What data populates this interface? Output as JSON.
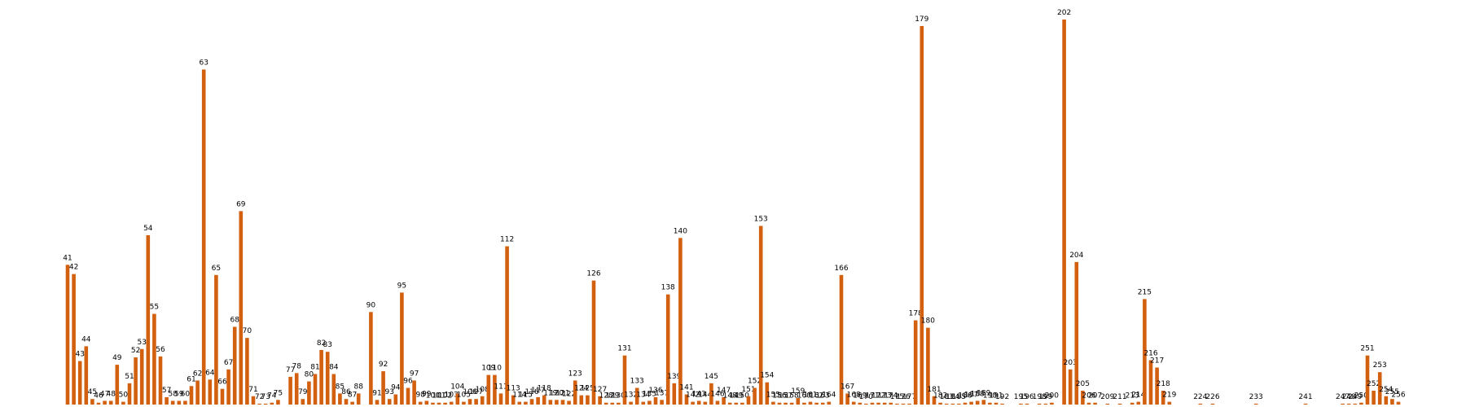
{
  "chart_data": {
    "type": "bar",
    "color": "#d2600f",
    "categories": [
      "41",
      "42",
      "43",
      "44",
      "45",
      "46",
      "47",
      "48",
      "49",
      "50",
      "51",
      "52",
      "53",
      "54",
      "55",
      "56",
      "57",
      "58",
      "59",
      "60",
      "61",
      "62",
      "63",
      "64",
      "65",
      "66",
      "67",
      "68",
      "69",
      "70",
      "71",
      "72",
      "73",
      "74",
      "75",
      null,
      "77",
      "78",
      "79",
      "80",
      "81",
      "82",
      "83",
      "84",
      "85",
      "86",
      "87",
      "88",
      null,
      "90",
      "91",
      "92",
      "93",
      "94",
      "95",
      "96",
      "97",
      "98",
      "99",
      "100",
      "101",
      "102",
      "103",
      "104",
      "105",
      "106",
      "107",
      "108",
      "109",
      "110",
      "111",
      "112",
      "113",
      "114",
      "115",
      "116",
      "117",
      "118",
      "119",
      "120",
      "121",
      "122",
      "123",
      "124",
      "125",
      "126",
      "127",
      "128",
      "129",
      "130",
      "131",
      "132",
      "133",
      "134",
      "135",
      "136",
      "137",
      "138",
      "139",
      "140",
      "141",
      "142",
      "143",
      "144",
      "145",
      "146",
      "147",
      "148",
      "149",
      "150",
      "151",
      "152",
      "153",
      "154",
      "155",
      "156",
      "157",
      "158",
      "159",
      "160",
      "161",
      "162",
      "163",
      "164",
      null,
      "166",
      "167",
      "168",
      "169",
      "170",
      "171",
      "172",
      "173",
      "174",
      "175",
      "176",
      "177",
      "178",
      "179",
      "180",
      "181",
      "182",
      "183",
      "184",
      "185",
      "186",
      "187",
      "188",
      "189",
      "190",
      "191",
      "192",
      null,
      null,
      "195",
      "196",
      null,
      "198",
      "199",
      "200",
      null,
      "202",
      "203",
      "204",
      "205",
      "206",
      "207",
      null,
      "209",
      null,
      "211",
      null,
      "213",
      "214",
      "215",
      "216",
      "217",
      "218",
      "219",
      null,
      null,
      null,
      null,
      "224",
      null,
      "226",
      null,
      null,
      null,
      null,
      null,
      null,
      "233",
      null,
      null,
      null,
      null,
      null,
      null,
      null,
      "241",
      null,
      null,
      null,
      null,
      null,
      "247",
      "248",
      "249",
      "250",
      "251",
      "252",
      "253",
      "254",
      "255",
      "256"
    ],
    "values": [
      151,
      141,
      47,
      63,
      6,
      2,
      4,
      4,
      43,
      3,
      23,
      51,
      60,
      183,
      98,
      52,
      8,
      4,
      4,
      4,
      20,
      26,
      362,
      27,
      140,
      17,
      38,
      84,
      209,
      72,
      9,
      1,
      1,
      2,
      5,
      0,
      30,
      34,
      6,
      25,
      33,
      59,
      57,
      33,
      12,
      6,
      3,
      12,
      0,
      100,
      5,
      36,
      6,
      11,
      121,
      18,
      26,
      3,
      4,
      2,
      2,
      2,
      3,
      12,
      3,
      6,
      6,
      9,
      32,
      32,
      12,
      171,
      10,
      3,
      3,
      6,
      8,
      10,
      5,
      5,
      5,
      4,
      26,
      10,
      10,
      134,
      9,
      2,
      2,
      2,
      53,
      3,
      18,
      3,
      4,
      8,
      5,
      119,
      23,
      180,
      11,
      3,
      4,
      3,
      23,
      4,
      8,
      2,
      2,
      2,
      9,
      18,
      193,
      24,
      3,
      2,
      2,
      2,
      7,
      2,
      3,
      2,
      2,
      3,
      0,
      140,
      12,
      3,
      2,
      1,
      2,
      2,
      2,
      2,
      1,
      1,
      1,
      91,
      409,
      83,
      9,
      2,
      1,
      1,
      1,
      2,
      3,
      4,
      5,
      2,
      2,
      1,
      0,
      0,
      1,
      1,
      0,
      1,
      1,
      2,
      0,
      416,
      38,
      154,
      15,
      2,
      2,
      0,
      1,
      0,
      1,
      0,
      2,
      3,
      114,
      48,
      40,
      15,
      3,
      0,
      0,
      0,
      0,
      1,
      0,
      1,
      0,
      0,
      0,
      0,
      0,
      0,
      1,
      0,
      0,
      0,
      0,
      0,
      0,
      0,
      1,
      0,
      0,
      0,
      0,
      0,
      1,
      1,
      1,
      2,
      53,
      15,
      35,
      9,
      6,
      3
    ]
  }
}
